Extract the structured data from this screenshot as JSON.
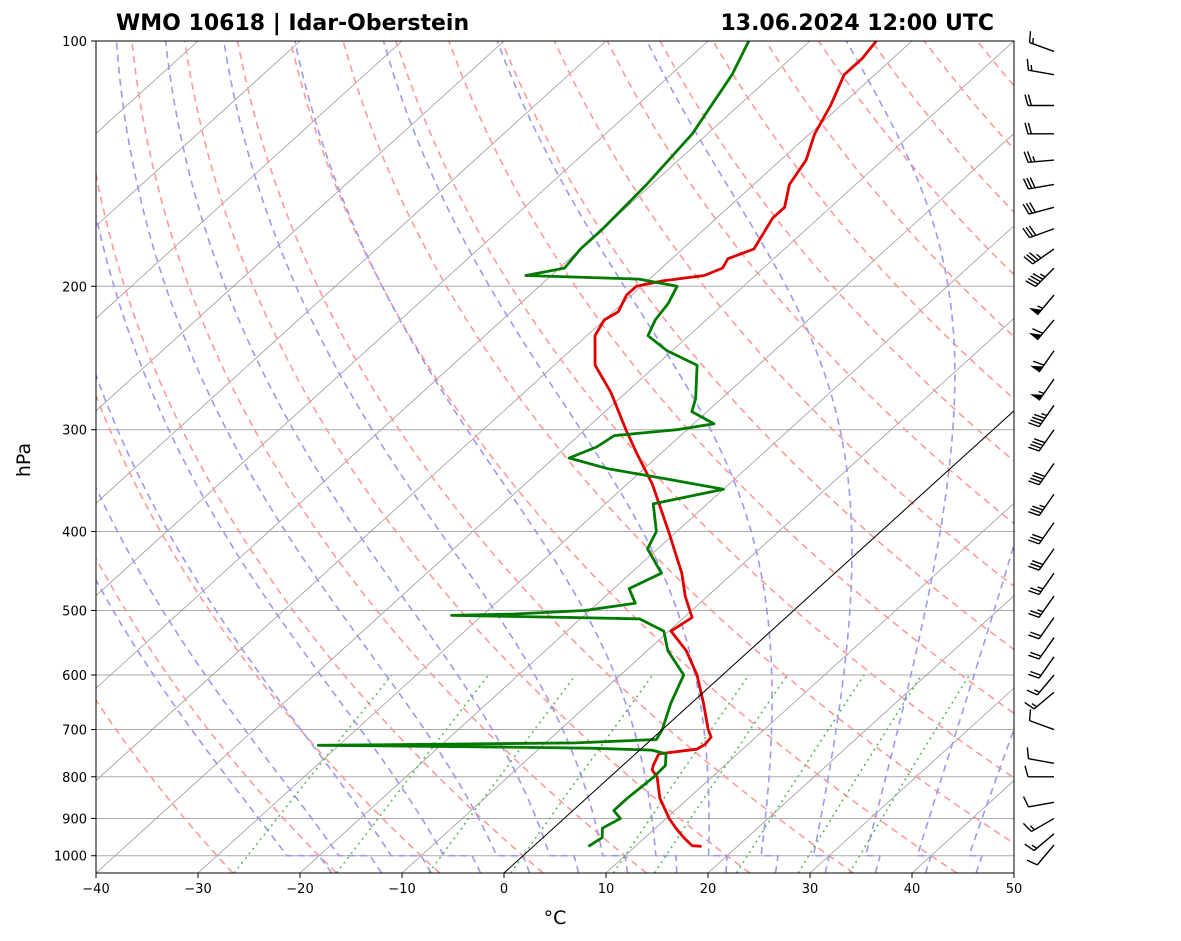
{
  "title_left": "WMO 10618 | Idar-Oberstein",
  "title_right": "13.06.2024 12:00 UTC",
  "chart_data": {
    "type": "line",
    "diagram": "skew-T log-p",
    "xlabel": "°C",
    "ylabel": "hPa",
    "xlim": [
      -40,
      50
    ],
    "ylim": [
      1050,
      100
    ],
    "x_ticks": [
      -40,
      -30,
      -20,
      -10,
      0,
      10,
      20,
      30,
      40,
      50
    ],
    "x_tick_labels": [
      "−40",
      "−30",
      "−20",
      "−10",
      "0",
      "10",
      "20",
      "30",
      "40",
      "50"
    ],
    "y_ticks": [
      100,
      200,
      300,
      400,
      500,
      600,
      700,
      800,
      900,
      1000
    ],
    "y_tick_labels": [
      "100",
      "200",
      "300",
      "400",
      "500",
      "600",
      "700",
      "800",
      "900",
      "1000"
    ],
    "isotherm_spacing_c": 10,
    "dry_adiabats_theta_c": [
      -30,
      -20,
      -10,
      0,
      10,
      20,
      30,
      40,
      50,
      60,
      70,
      80,
      90,
      100,
      110,
      120,
      130,
      140,
      150,
      160,
      170,
      180
    ],
    "moist_adiabats_c": [
      -20,
      -15,
      -10,
      -5,
      0,
      5,
      10,
      15,
      20,
      25,
      30,
      35,
      40,
      45
    ],
    "mixing_ratio_lines_c_at_1000": [
      -27,
      -17,
      -8,
      0,
      10,
      14,
      22,
      28,
      33
    ],
    "colors": {
      "temperature": "#e00000",
      "dewpoint": "#007a00",
      "isotherm": "#9a9a9a",
      "dry_adiabat": "#ff9a9a",
      "moist_adiabat": "#9a9aee",
      "mixing_ratio": "#5cb85c",
      "isobar": "#aaaaaa",
      "parcel": "#000000",
      "barb": "#000000"
    },
    "series": [
      {
        "name": "Temperature",
        "points": [
          {
            "p": 974,
            "t": 16.5
          },
          {
            "p": 972,
            "t": 15.5
          },
          {
            "p": 950,
            "t": 13.8
          },
          {
            "p": 925,
            "t": 12.0
          },
          {
            "p": 900,
            "t": 10.3
          },
          {
            "p": 850,
            "t": 7.2
          },
          {
            "p": 800,
            "t": 4.6
          },
          {
            "p": 785,
            "t": 3.4
          },
          {
            "p": 775,
            "t": 3.0
          },
          {
            "p": 750,
            "t": 2.3
          },
          {
            "p": 740,
            "t": 5.5
          },
          {
            "p": 730,
            "t": 5.8
          },
          {
            "p": 715,
            "t": 5.6
          },
          {
            "p": 700,
            "t": 4.5
          },
          {
            "p": 650,
            "t": 1.2
          },
          {
            "p": 600,
            "t": -2.5
          },
          {
            "p": 560,
            "t": -6.2
          },
          {
            "p": 530,
            "t": -9.8
          },
          {
            "p": 510,
            "t": -9.2
          },
          {
            "p": 480,
            "t": -12.2
          },
          {
            "p": 450,
            "t": -15.0
          },
          {
            "p": 400,
            "t": -20.8
          },
          {
            "p": 350,
            "t": -27.5
          },
          {
            "p": 320,
            "t": -32.5
          },
          {
            "p": 300,
            "t": -36.0
          },
          {
            "p": 270,
            "t": -41.5
          },
          {
            "p": 250,
            "t": -46.0
          },
          {
            "p": 230,
            "t": -49.2
          },
          {
            "p": 220,
            "t": -50.0
          },
          {
            "p": 215,
            "t": -49.5
          },
          {
            "p": 205,
            "t": -50.5
          },
          {
            "p": 200,
            "t": -50.5
          },
          {
            "p": 197,
            "t": -48.5
          },
          {
            "p": 194,
            "t": -45.0
          },
          {
            "p": 190,
            "t": -44.0
          },
          {
            "p": 185,
            "t": -44.5
          },
          {
            "p": 180,
            "t": -43.0
          },
          {
            "p": 165,
            "t": -44.5
          },
          {
            "p": 160,
            "t": -44.5
          },
          {
            "p": 150,
            "t": -46.5
          },
          {
            "p": 140,
            "t": -47.5
          },
          {
            "p": 130,
            "t": -49.5
          },
          {
            "p": 120,
            "t": -51.0
          },
          {
            "p": 110,
            "t": -53.0
          },
          {
            "p": 105,
            "t": -53.0
          },
          {
            "p": 100,
            "t": -53.5
          }
        ]
      },
      {
        "name": "Dewpoint",
        "points": [
          {
            "p": 974,
            "t": 5.4
          },
          {
            "p": 950,
            "t": 5.8
          },
          {
            "p": 925,
            "t": 4.8
          },
          {
            "p": 900,
            "t": 5.5
          },
          {
            "p": 880,
            "t": 4.0
          },
          {
            "p": 850,
            "t": 4.0
          },
          {
            "p": 800,
            "t": 4.3
          },
          {
            "p": 775,
            "t": 4.2
          },
          {
            "p": 750,
            "t": 3.0
          },
          {
            "p": 742,
            "t": 1.2
          },
          {
            "p": 738,
            "t": -5.0
          },
          {
            "p": 735,
            "t": -16.0
          },
          {
            "p": 732,
            "t": -32.0
          },
          {
            "p": 730,
            "t": -22.0
          },
          {
            "p": 727,
            "t": -7.0
          },
          {
            "p": 720,
            "t": 0.5
          },
          {
            "p": 700,
            "t": 0.0
          },
          {
            "p": 650,
            "t": -2.0
          },
          {
            "p": 600,
            "t": -3.8
          },
          {
            "p": 560,
            "t": -8.0
          },
          {
            "p": 530,
            "t": -10.5
          },
          {
            "p": 512,
            "t": -14.2
          },
          {
            "p": 510,
            "t": -21.0
          },
          {
            "p": 507,
            "t": -33.0
          },
          {
            "p": 505,
            "t": -27.0
          },
          {
            "p": 500,
            "t": -20.5
          },
          {
            "p": 490,
            "t": -16.3
          },
          {
            "p": 470,
            "t": -18.5
          },
          {
            "p": 450,
            "t": -17.0
          },
          {
            "p": 420,
            "t": -21.0
          },
          {
            "p": 400,
            "t": -22.0
          },
          {
            "p": 370,
            "t": -25.3
          },
          {
            "p": 355,
            "t": -20.0
          },
          {
            "p": 345,
            "t": -26.5
          },
          {
            "p": 335,
            "t": -33.5
          },
          {
            "p": 325,
            "t": -38.5
          },
          {
            "p": 315,
            "t": -37.0
          },
          {
            "p": 305,
            "t": -36.5
          },
          {
            "p": 300,
            "t": -31.0
          },
          {
            "p": 295,
            "t": -28.0
          },
          {
            "p": 285,
            "t": -31.5
          },
          {
            "p": 275,
            "t": -32.5
          },
          {
            "p": 250,
            "t": -36.0
          },
          {
            "p": 240,
            "t": -40.5
          },
          {
            "p": 230,
            "t": -44.0
          },
          {
            "p": 220,
            "t": -45.0
          },
          {
            "p": 210,
            "t": -45.5
          },
          {
            "p": 200,
            "t": -46.5
          },
          {
            "p": 196,
            "t": -51.0
          },
          {
            "p": 194,
            "t": -62.5
          },
          {
            "p": 190,
            "t": -59.5
          },
          {
            "p": 180,
            "t": -60.0
          },
          {
            "p": 170,
            "t": -60.0
          },
          {
            "p": 150,
            "t": -60.5
          },
          {
            "p": 130,
            "t": -61.5
          },
          {
            "p": 110,
            "t": -64.0
          },
          {
            "p": 100,
            "t": -66.0
          }
        ]
      },
      {
        "name": "Parcel",
        "points": [
          {
            "p": 1050,
            "t": 0.0
          },
          {
            "p": 100,
            "t": 0.0
          }
        ]
      }
    ],
    "wind_barbs": [
      {
        "p": 970,
        "speed_kt": 10,
        "dir_deg": 220
      },
      {
        "p": 940,
        "speed_kt": 15,
        "dir_deg": 230
      },
      {
        "p": 900,
        "speed_kt": 15,
        "dir_deg": 240
      },
      {
        "p": 860,
        "speed_kt": 10,
        "dir_deg": 260
      },
      {
        "p": 800,
        "speed_kt": 10,
        "dir_deg": 270
      },
      {
        "p": 770,
        "speed_kt": 10,
        "dir_deg": 280
      },
      {
        "p": 700,
        "speed_kt": 10,
        "dir_deg": 290
      },
      {
        "p": 630,
        "speed_kt": 15,
        "dir_deg": 230
      },
      {
        "p": 600,
        "speed_kt": 15,
        "dir_deg": 220
      },
      {
        "p": 570,
        "speed_kt": 20,
        "dir_deg": 215
      },
      {
        "p": 540,
        "speed_kt": 20,
        "dir_deg": 215
      },
      {
        "p": 510,
        "speed_kt": 20,
        "dir_deg": 215
      },
      {
        "p": 480,
        "speed_kt": 25,
        "dir_deg": 215
      },
      {
        "p": 450,
        "speed_kt": 25,
        "dir_deg": 215
      },
      {
        "p": 420,
        "speed_kt": 30,
        "dir_deg": 215
      },
      {
        "p": 390,
        "speed_kt": 30,
        "dir_deg": 215
      },
      {
        "p": 360,
        "speed_kt": 35,
        "dir_deg": 215
      },
      {
        "p": 330,
        "speed_kt": 40,
        "dir_deg": 215
      },
      {
        "p": 300,
        "speed_kt": 40,
        "dir_deg": 215
      },
      {
        "p": 280,
        "speed_kt": 45,
        "dir_deg": 215
      },
      {
        "p": 260,
        "speed_kt": 55,
        "dir_deg": 215
      },
      {
        "p": 240,
        "speed_kt": 60,
        "dir_deg": 215
      },
      {
        "p": 220,
        "speed_kt": 60,
        "dir_deg": 220
      },
      {
        "p": 205,
        "speed_kt": 55,
        "dir_deg": 220
      },
      {
        "p": 190,
        "speed_kt": 45,
        "dir_deg": 225
      },
      {
        "p": 180,
        "speed_kt": 35,
        "dir_deg": 235
      },
      {
        "p": 170,
        "speed_kt": 30,
        "dir_deg": 250
      },
      {
        "p": 160,
        "speed_kt": 30,
        "dir_deg": 255
      },
      {
        "p": 150,
        "speed_kt": 30,
        "dir_deg": 260
      },
      {
        "p": 140,
        "speed_kt": 25,
        "dir_deg": 265
      },
      {
        "p": 130,
        "speed_kt": 20,
        "dir_deg": 270
      },
      {
        "p": 120,
        "speed_kt": 20,
        "dir_deg": 270
      },
      {
        "p": 110,
        "speed_kt": 15,
        "dir_deg": 280
      },
      {
        "p": 103,
        "speed_kt": 15,
        "dir_deg": 290
      }
    ]
  }
}
